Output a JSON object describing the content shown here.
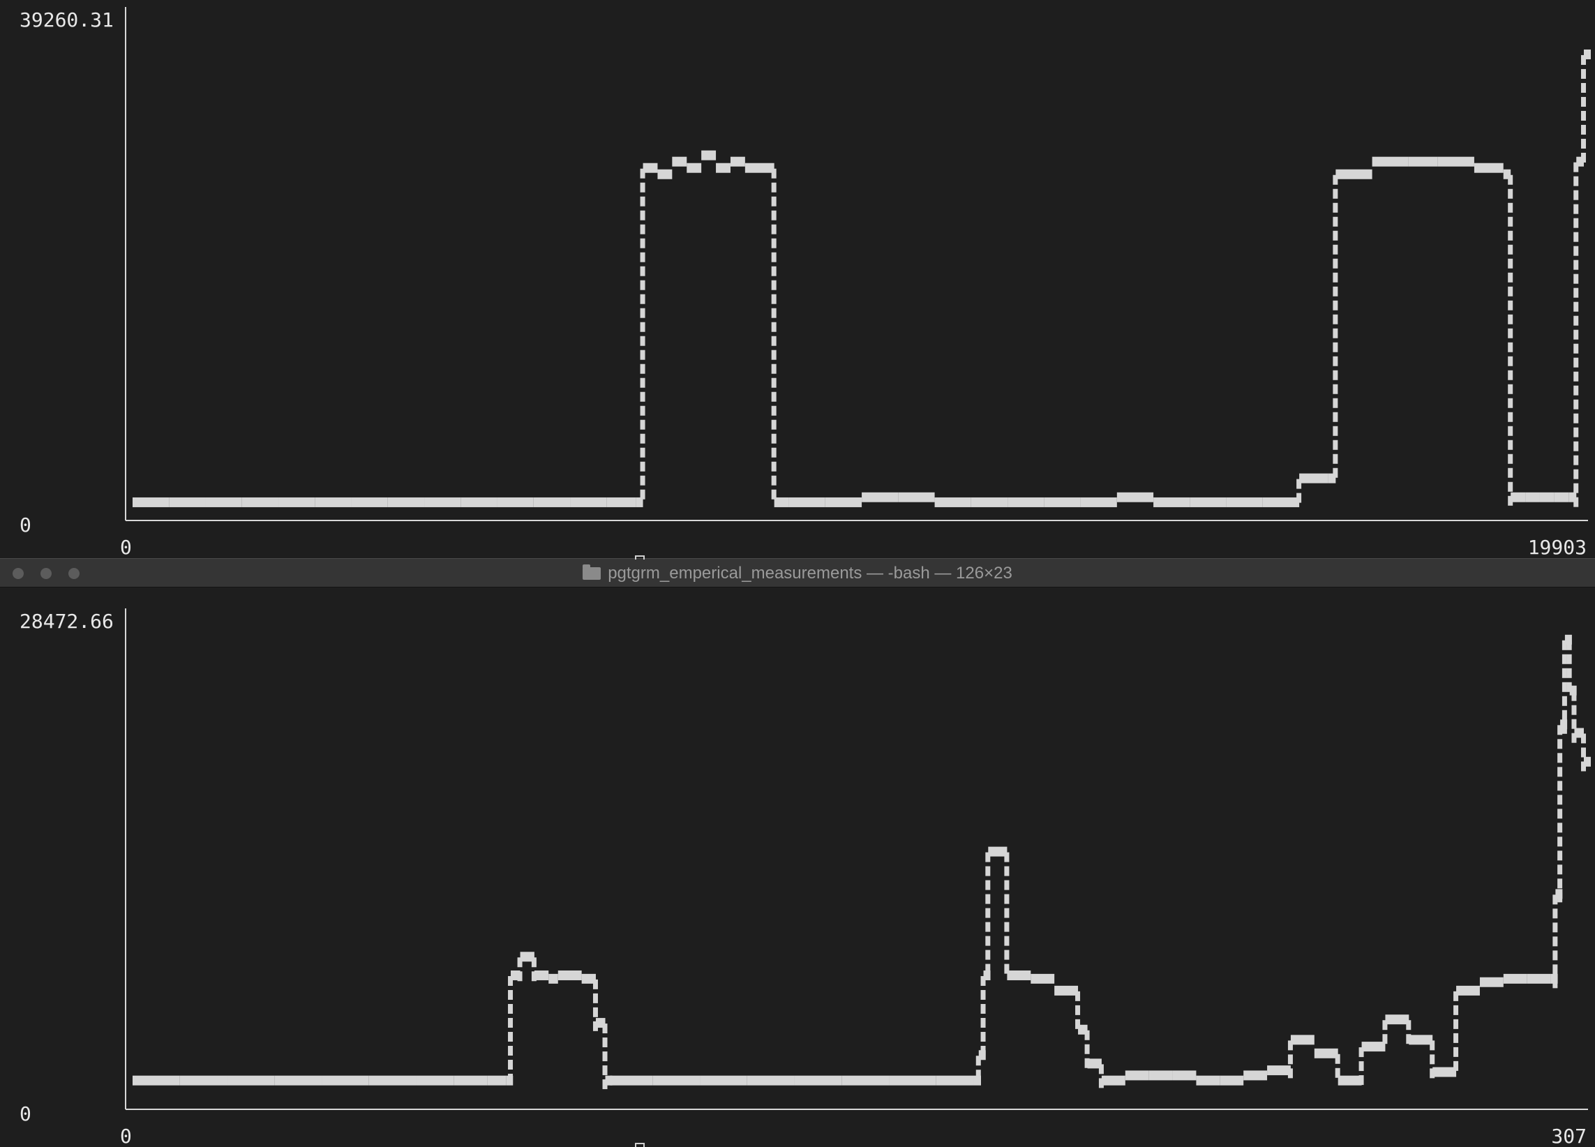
{
  "window": {
    "title": "pgtgrm_emperical_measurements — -bash — 126×23"
  },
  "icons": {
    "folder": "folder-icon",
    "traffic_lights": [
      "close-button",
      "minimize-button",
      "zoom-button"
    ]
  },
  "chart_data": [
    {
      "type": "line",
      "title": "",
      "xlabel": "",
      "ylabel": "",
      "xlim": [
        0,
        19903
      ],
      "ylim": [
        0,
        39260.31
      ],
      "y_tick_labels": [
        "39260.31",
        "0"
      ],
      "x_tick_labels": [
        "0",
        "19903"
      ],
      "grid": false,
      "series": [
        {
          "x": [
            0,
            500,
            1000,
            1500,
            2000,
            2500,
            3000,
            3500,
            4000,
            4500,
            5000,
            5500,
            6000,
            6500,
            6900,
            7000,
            7200,
            7400,
            7600,
            7800,
            8000,
            8200,
            8400,
            8800,
            9000,
            9500,
            10000,
            10500,
            11000,
            11500,
            12000,
            12500,
            13000,
            13500,
            14000,
            14500,
            15000,
            15500,
            16000,
            16400,
            16500,
            17000,
            17500,
            17900,
            18400,
            18800,
            18900,
            19100,
            19300,
            19500,
            19700,
            19800,
            19903
          ],
          "y": [
            500,
            500,
            500,
            500,
            500,
            500,
            500,
            500,
            500,
            500,
            500,
            500,
            500,
            500,
            500,
            27000,
            26500,
            27500,
            27000,
            28000,
            27000,
            27500,
            27000,
            500,
            500,
            500,
            900,
            900,
            500,
            500,
            500,
            500,
            500,
            900,
            500,
            500,
            500,
            500,
            2400,
            2400,
            26500,
            27500,
            27500,
            27500,
            27000,
            26500,
            900,
            900,
            900,
            900,
            900,
            27500,
            36000
          ]
        }
      ]
    },
    {
      "type": "line",
      "title": "",
      "xlabel": "",
      "ylabel": "",
      "xlim": [
        0,
        307
      ],
      "ylim": [
        0,
        28472.66
      ],
      "y_tick_labels": [
        "28472.66",
        "0"
      ],
      "x_tick_labels": [
        "0",
        "307"
      ],
      "grid": false,
      "series": [
        {
          "x": [
            0,
            10,
            20,
            30,
            40,
            50,
            60,
            68,
            75,
            79,
            80,
            82,
            85,
            88,
            90,
            95,
            98,
            100,
            101,
            110,
            120,
            130,
            140,
            150,
            160,
            170,
            178,
            179,
            180,
            181,
            185,
            190,
            195,
            200,
            202,
            205,
            210,
            215,
            220,
            225,
            230,
            235,
            240,
            245,
            250,
            255,
            260,
            265,
            270,
            275,
            280,
            285,
            290,
            295,
            300,
            301,
            302,
            303,
            304,
            305,
            307
          ],
          "y": [
            1000,
            1000,
            1000,
            1000,
            1000,
            1000,
            1000,
            1000,
            1000,
            1000,
            7200,
            8300,
            7200,
            7000,
            7200,
            7000,
            4400,
            1000,
            1000,
            1000,
            1000,
            1000,
            1000,
            1000,
            1000,
            1000,
            1000,
            2500,
            7200,
            14500,
            7200,
            7000,
            6300,
            4000,
            2000,
            1000,
            1300,
            1300,
            1300,
            1000,
            1000,
            1300,
            1600,
            3400,
            2600,
            1000,
            3000,
            4600,
            3400,
            1500,
            6300,
            6800,
            7000,
            7000,
            7000,
            12000,
            22000,
            27000,
            24000,
            21500,
            19800
          ]
        }
      ]
    }
  ]
}
